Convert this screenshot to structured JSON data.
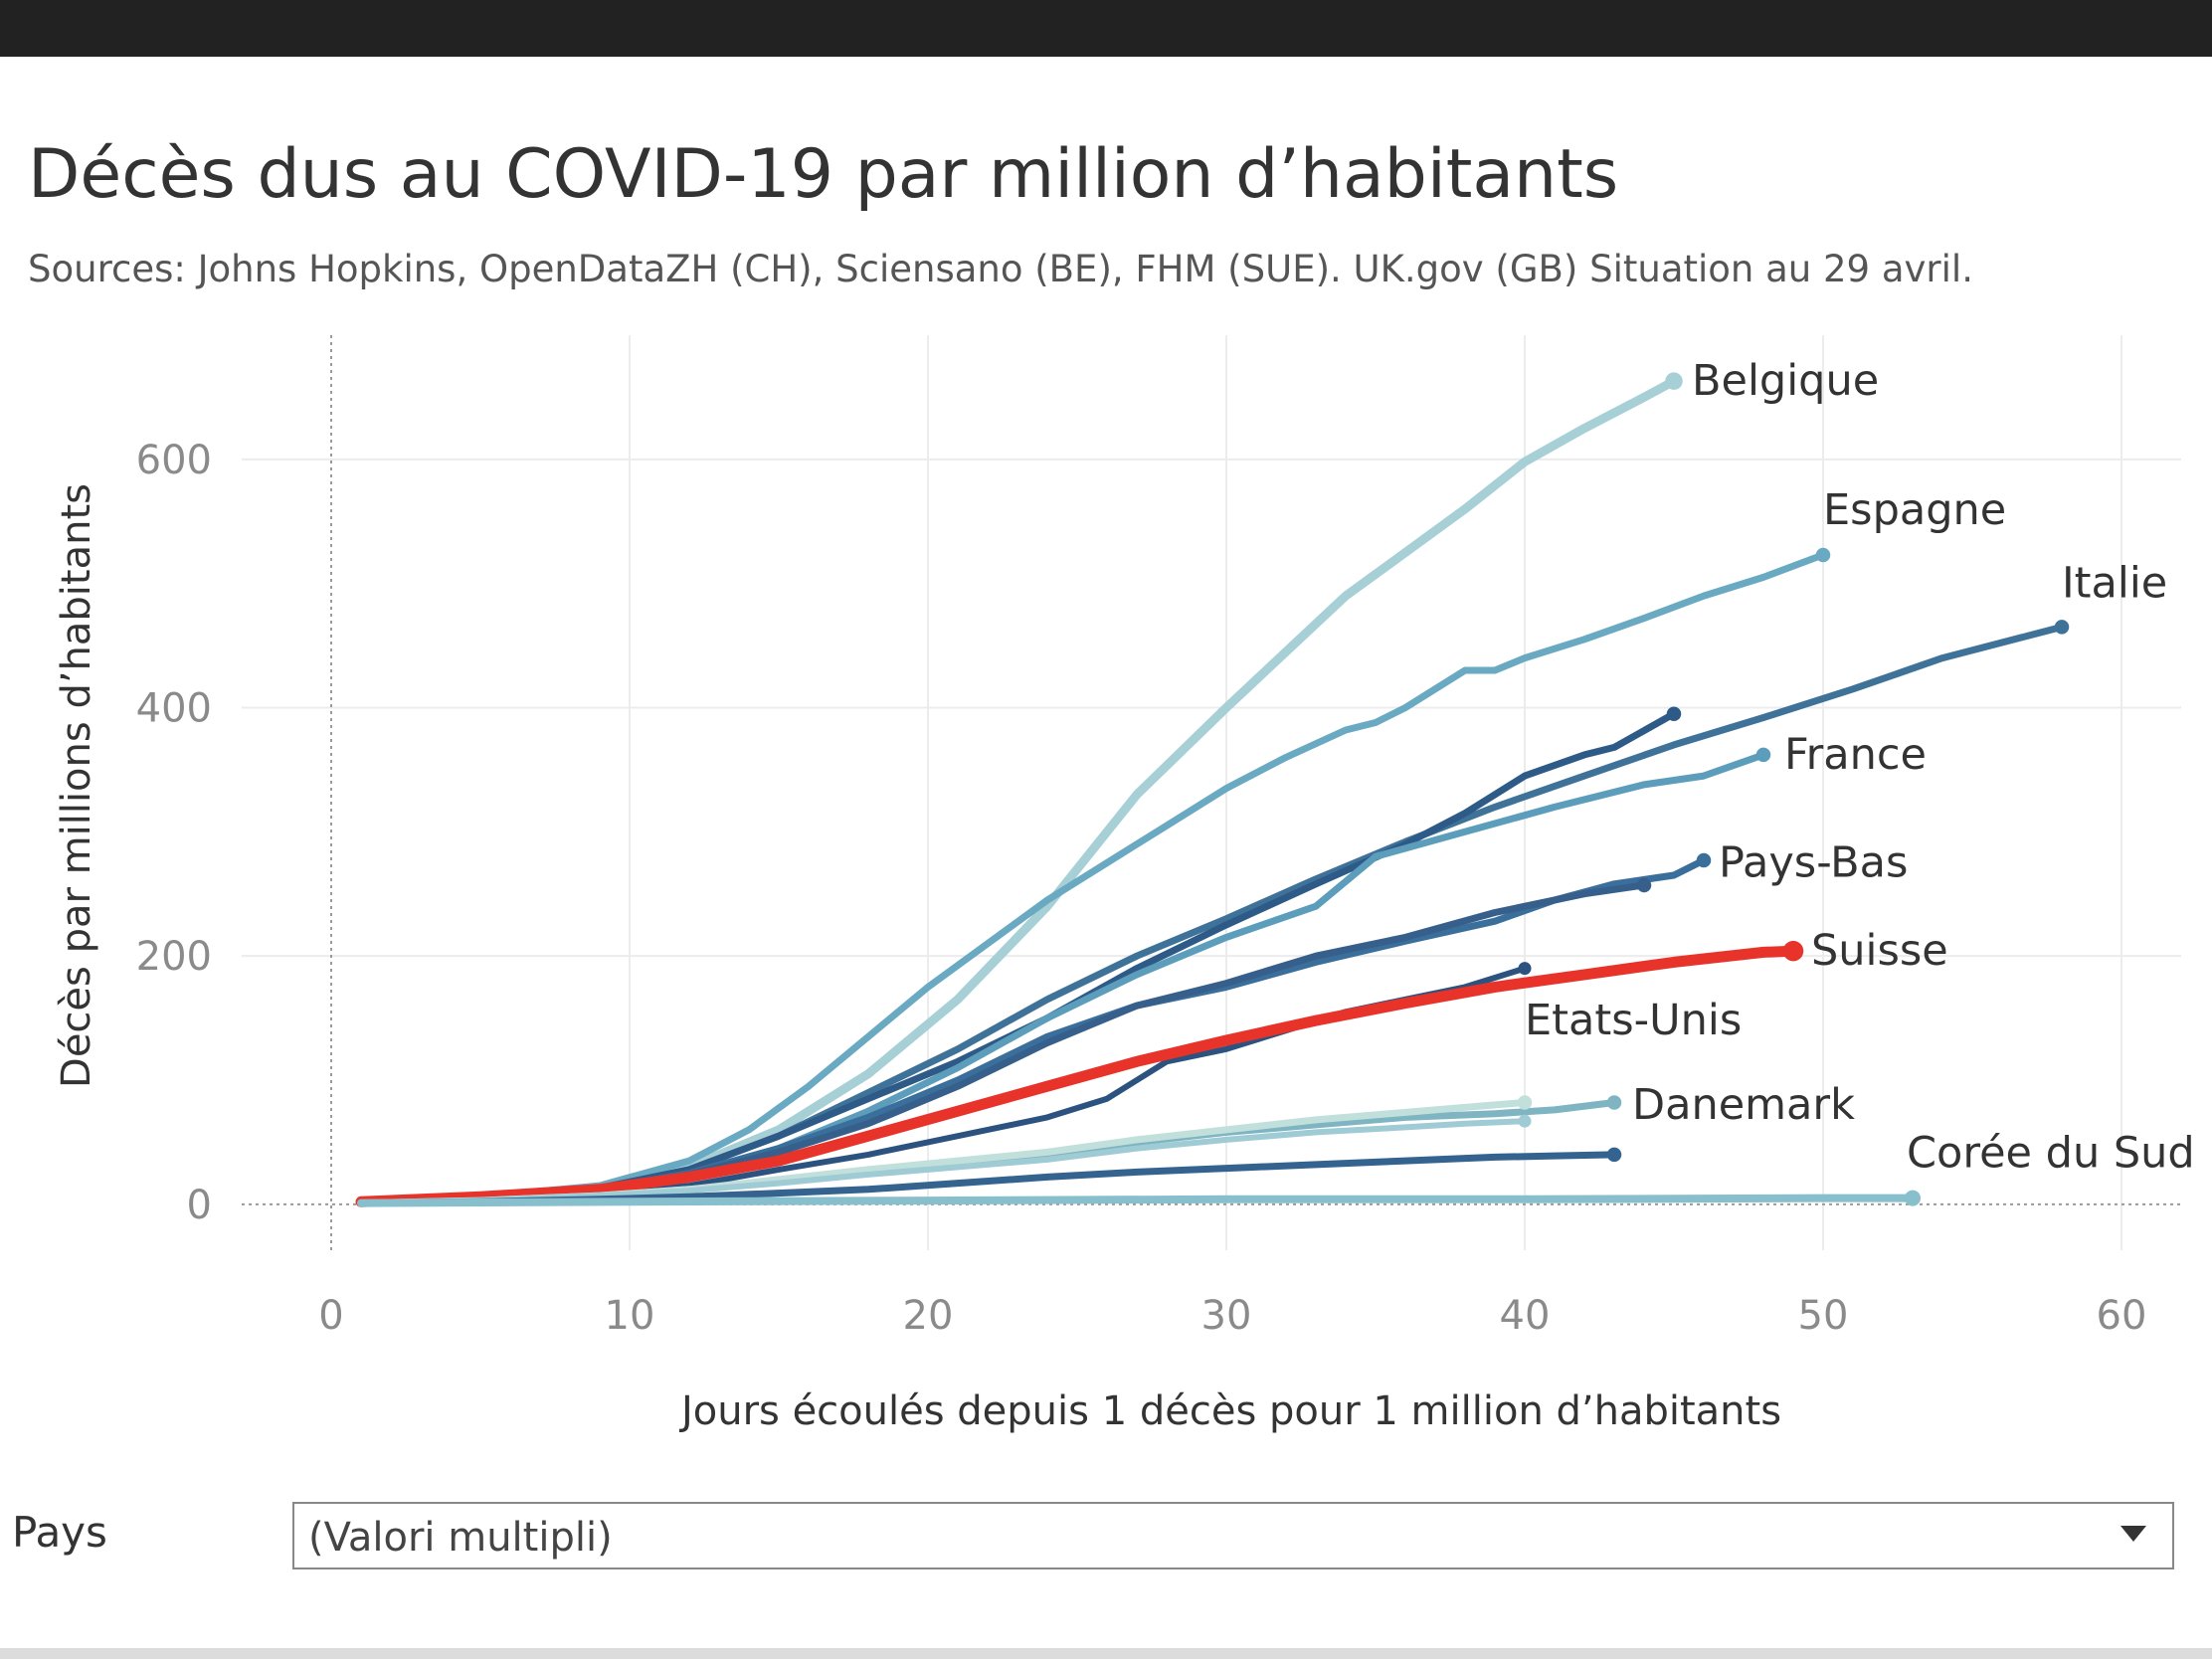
{
  "chart_data": {
    "type": "line",
    "title": "Décès dus au COVID-19 par million d’habitants",
    "subtitle": "Sources: Johns Hopkins, OpenDataZH (CH), Sciensano (BE), FHM (SUE). UK.gov (GB) Situation au 29 avril.",
    "xlabel": "Jours écoulés depuis 1 décès pour 1 million d’habitants",
    "ylabel": "Décès par millions d’habitants",
    "xlim": [
      -3,
      62
    ],
    "ylim": [
      -37,
      700
    ],
    "x_ticks": [
      0,
      10,
      20,
      30,
      40,
      50,
      60
    ],
    "y_ticks": [
      0,
      200,
      400,
      600
    ],
    "grid": true,
    "legend": "none (direct labels)",
    "highlight_color": "#e8332a",
    "series": [
      {
        "name": "Belgique",
        "color": "#a7d0d6",
        "width": 9,
        "label": true,
        "points": [
          [
            1,
            2
          ],
          [
            5,
            5
          ],
          [
            9,
            13
          ],
          [
            12,
            30
          ],
          [
            15,
            60
          ],
          [
            18,
            105
          ],
          [
            21,
            165
          ],
          [
            24,
            240
          ],
          [
            27,
            330
          ],
          [
            30,
            400
          ],
          [
            32,
            445
          ],
          [
            34,
            490
          ],
          [
            36,
            525
          ],
          [
            38,
            560
          ],
          [
            40,
            598
          ],
          [
            42,
            625
          ],
          [
            44,
            650
          ],
          [
            45,
            663
          ]
        ]
      },
      {
        "name": "Espagne",
        "color": "#6aa9c2",
        "width": 7,
        "label": true,
        "points": [
          [
            1,
            2
          ],
          [
            5,
            6
          ],
          [
            9,
            15
          ],
          [
            12,
            35
          ],
          [
            14,
            60
          ],
          [
            16,
            95
          ],
          [
            18,
            135
          ],
          [
            20,
            175
          ],
          [
            22,
            210
          ],
          [
            24,
            245
          ],
          [
            26,
            275
          ],
          [
            28,
            305
          ],
          [
            30,
            335
          ],
          [
            32,
            360
          ],
          [
            34,
            382
          ],
          [
            35,
            388
          ],
          [
            36,
            400
          ],
          [
            38,
            430
          ],
          [
            39,
            430
          ],
          [
            40,
            440
          ],
          [
            42,
            455
          ],
          [
            44,
            472
          ],
          [
            46,
            490
          ],
          [
            48,
            505
          ],
          [
            50,
            523
          ]
        ]
      },
      {
        "name": "Italie",
        "color": "#3f7299",
        "width": 7,
        "label": true,
        "points": [
          [
            1,
            2
          ],
          [
            5,
            5
          ],
          [
            9,
            13
          ],
          [
            12,
            28
          ],
          [
            15,
            55
          ],
          [
            18,
            90
          ],
          [
            21,
            125
          ],
          [
            24,
            165
          ],
          [
            27,
            200
          ],
          [
            30,
            230
          ],
          [
            33,
            262
          ],
          [
            36,
            292
          ],
          [
            39,
            320
          ],
          [
            42,
            345
          ],
          [
            45,
            370
          ],
          [
            48,
            392
          ],
          [
            51,
            415
          ],
          [
            54,
            440
          ],
          [
            58,
            465
          ]
        ]
      },
      {
        "name": "",
        "color": "#2e5a88",
        "width": 7,
        "label": false,
        "points": [
          [
            1,
            2
          ],
          [
            5,
            5
          ],
          [
            9,
            13
          ],
          [
            12,
            28
          ],
          [
            15,
            55
          ],
          [
            18,
            85
          ],
          [
            21,
            115
          ],
          [
            24,
            150
          ],
          [
            27,
            190
          ],
          [
            30,
            225
          ],
          [
            33,
            258
          ],
          [
            36,
            290
          ],
          [
            38,
            315
          ],
          [
            40,
            345
          ],
          [
            42,
            362
          ],
          [
            43,
            368
          ],
          [
            45,
            395
          ]
        ]
      },
      {
        "name": "France",
        "color": "#5b9dbb",
        "width": 7,
        "label": true,
        "points": [
          [
            1,
            2
          ],
          [
            5,
            5
          ],
          [
            9,
            12
          ],
          [
            12,
            24
          ],
          [
            15,
            45
          ],
          [
            18,
            75
          ],
          [
            21,
            110
          ],
          [
            24,
            150
          ],
          [
            27,
            185
          ],
          [
            30,
            215
          ],
          [
            33,
            240
          ],
          [
            35,
            280
          ],
          [
            38,
            300
          ],
          [
            41,
            320
          ],
          [
            44,
            338
          ],
          [
            46,
            345
          ],
          [
            48,
            362
          ]
        ]
      },
      {
        "name": "Pays-Bas",
        "color": "#3a6e9b",
        "width": 7,
        "label": true,
        "points": [
          [
            1,
            2
          ],
          [
            5,
            5
          ],
          [
            9,
            12
          ],
          [
            12,
            25
          ],
          [
            15,
            45
          ],
          [
            18,
            70
          ],
          [
            21,
            100
          ],
          [
            24,
            135
          ],
          [
            27,
            160
          ],
          [
            30,
            175
          ],
          [
            33,
            195
          ],
          [
            36,
            212
          ],
          [
            39,
            228
          ],
          [
            41,
            245
          ],
          [
            43,
            258
          ],
          [
            45,
            265
          ],
          [
            46,
            277
          ]
        ]
      },
      {
        "name": "",
        "color": "#365f8c",
        "width": 7,
        "label": false,
        "points": [
          [
            1,
            2
          ],
          [
            5,
            5
          ],
          [
            9,
            12
          ],
          [
            12,
            24
          ],
          [
            15,
            42
          ],
          [
            18,
            65
          ],
          [
            21,
            95
          ],
          [
            24,
            130
          ],
          [
            27,
            160
          ],
          [
            30,
            178
          ],
          [
            33,
            200
          ],
          [
            36,
            215
          ],
          [
            39,
            235
          ],
          [
            42,
            250
          ],
          [
            44,
            257
          ]
        ]
      },
      {
        "name": "Etats-Unis",
        "color": "#2c5280",
        "width": 6,
        "label": true,
        "points": [
          [
            1,
            2
          ],
          [
            5,
            4
          ],
          [
            9,
            8
          ],
          [
            12,
            15
          ],
          [
            15,
            28
          ],
          [
            18,
            40
          ],
          [
            21,
            55
          ],
          [
            24,
            70
          ],
          [
            26,
            85
          ],
          [
            28,
            115
          ],
          [
            30,
            125
          ],
          [
            32,
            140
          ],
          [
            34,
            155
          ],
          [
            36,
            165
          ],
          [
            38,
            175
          ],
          [
            40,
            190
          ]
        ]
      },
      {
        "name": "Suisse",
        "color": "#e8332a",
        "width": 11,
        "label": true,
        "points": [
          [
            1,
            2
          ],
          [
            5,
            6
          ],
          [
            9,
            12
          ],
          [
            12,
            22
          ],
          [
            15,
            35
          ],
          [
            18,
            55
          ],
          [
            21,
            75
          ],
          [
            24,
            95
          ],
          [
            27,
            115
          ],
          [
            30,
            132
          ],
          [
            33,
            148
          ],
          [
            36,
            162
          ],
          [
            39,
            175
          ],
          [
            42,
            185
          ],
          [
            45,
            195
          ],
          [
            48,
            203
          ],
          [
            49,
            204
          ]
        ]
      },
      {
        "name": "Danemark",
        "color": "#7fb4c3",
        "width": 7,
        "label": true,
        "points": [
          [
            1,
            1
          ],
          [
            5,
            3
          ],
          [
            9,
            7
          ],
          [
            12,
            12
          ],
          [
            15,
            18
          ],
          [
            18,
            25
          ],
          [
            21,
            33
          ],
          [
            24,
            40
          ],
          [
            27,
            50
          ],
          [
            30,
            58
          ],
          [
            33,
            64
          ],
          [
            36,
            70
          ],
          [
            39,
            73
          ],
          [
            41,
            76
          ],
          [
            43,
            82
          ]
        ]
      },
      {
        "name": "",
        "color": "#c2e0db",
        "width": 7,
        "label": false,
        "points": [
          [
            1,
            1
          ],
          [
            5,
            3
          ],
          [
            9,
            7
          ],
          [
            12,
            12
          ],
          [
            15,
            20
          ],
          [
            18,
            28
          ],
          [
            21,
            35
          ],
          [
            24,
            42
          ],
          [
            27,
            52
          ],
          [
            30,
            60
          ],
          [
            33,
            68
          ],
          [
            36,
            74
          ],
          [
            38,
            78
          ],
          [
            40,
            82
          ]
        ]
      },
      {
        "name": "",
        "color": "#9fcbd4",
        "width": 6,
        "label": false,
        "points": [
          [
            1,
            1
          ],
          [
            5,
            3
          ],
          [
            9,
            7
          ],
          [
            12,
            11
          ],
          [
            15,
            17
          ],
          [
            18,
            24
          ],
          [
            21,
            30
          ],
          [
            24,
            36
          ],
          [
            27,
            45
          ],
          [
            30,
            52
          ],
          [
            33,
            58
          ],
          [
            36,
            62
          ],
          [
            38,
            65
          ],
          [
            40,
            67
          ]
        ]
      },
      {
        "name": "",
        "color": "#34638f",
        "width": 7,
        "label": false,
        "points": [
          [
            1,
            1
          ],
          [
            5,
            2
          ],
          [
            9,
            4
          ],
          [
            12,
            6
          ],
          [
            15,
            9
          ],
          [
            18,
            12
          ],
          [
            21,
            17
          ],
          [
            24,
            22
          ],
          [
            27,
            26
          ],
          [
            30,
            29
          ],
          [
            33,
            32
          ],
          [
            36,
            35
          ],
          [
            39,
            38
          ],
          [
            41,
            39
          ],
          [
            43,
            40
          ]
        ]
      },
      {
        "name": "Corée du Sud",
        "color": "#88bfcc",
        "width": 8,
        "label": true,
        "points": [
          [
            1,
            1
          ],
          [
            10,
            2
          ],
          [
            20,
            3
          ],
          [
            30,
            4
          ],
          [
            40,
            4
          ],
          [
            50,
            5
          ],
          [
            53,
            5
          ]
        ]
      }
    ],
    "labels": [
      {
        "text": "Belgique",
        "x": 45.6,
        "y": 663
      },
      {
        "text": "Espagne",
        "x": 50.0,
        "y": 559
      },
      {
        "text": "Italie",
        "x": 58.0,
        "y": 500
      },
      {
        "text": "France",
        "x": 48.7,
        "y": 362
      },
      {
        "text": "Pays-Bas",
        "x": 46.5,
        "y": 275
      },
      {
        "text": "Suisse",
        "x": 49.6,
        "y": 204
      },
      {
        "text": "Etats-Unis",
        "x": 40.0,
        "y": 148
      },
      {
        "text": "Danemark",
        "x": 43.6,
        "y": 80
      },
      {
        "text": "Corée du Sud",
        "x": 52.8,
        "y": 41
      }
    ]
  },
  "filter": {
    "label": "Pays",
    "value": "(Valori multipli)",
    "arrow_icon": "chevron-down-icon"
  }
}
